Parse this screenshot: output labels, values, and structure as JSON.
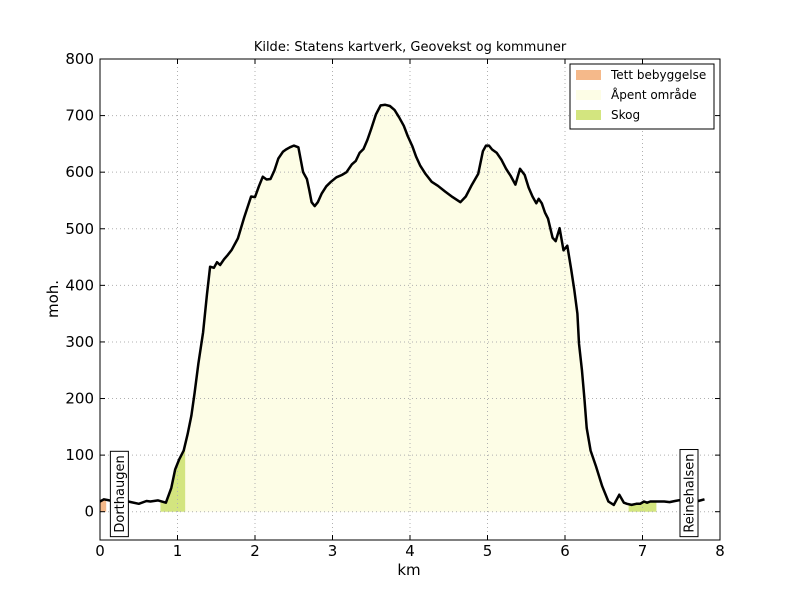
{
  "chart_data": {
    "type": "area",
    "title": "Kilde: Statens kartverk, Geovekst og kommuner",
    "xlabel": "km",
    "ylabel": "moh.",
    "xlim": [
      0,
      8
    ],
    "ylim": [
      -50,
      800
    ],
    "xticks": [
      "0",
      "1",
      "2",
      "3",
      "4",
      "5",
      "6",
      "7",
      "8"
    ],
    "yticks": [
      "800",
      "700",
      "600",
      "500",
      "400",
      "300",
      "200",
      "100",
      "0"
    ],
    "grid": true,
    "legend_position": "top-right",
    "legend": [
      {
        "label": "Tett bebyggelse",
        "color": "#f5b98a"
      },
      {
        "label": "Åpent område",
        "color": "#fdfde6"
      },
      {
        "label": "Skog",
        "color": "#d3e57f"
      }
    ],
    "land_cover": [
      {
        "class": "Tett bebyggelse",
        "x_start": 0.0,
        "x_end": 0.08
      },
      {
        "class": "Skog",
        "x_start": 0.78,
        "x_end": 1.1
      },
      {
        "class": "Åpent område",
        "x_start": 1.1,
        "x_end": 6.82
      },
      {
        "class": "Skog",
        "x_start": 6.82,
        "x_end": 7.18
      }
    ],
    "annotations": [
      {
        "text": "Dorthaugen",
        "x": 0.25
      },
      {
        "text": "Reinehalsen",
        "x": 7.6
      }
    ],
    "series": [
      {
        "x": [
          0.0,
          0.05,
          0.12,
          0.2,
          0.3,
          0.4,
          0.5,
          0.6,
          0.65,
          0.75,
          0.85,
          0.92,
          0.97,
          1.02,
          1.08,
          1.13,
          1.18,
          1.22,
          1.27,
          1.33,
          1.38,
          1.42,
          1.47,
          1.51,
          1.55,
          1.6,
          1.65,
          1.7,
          1.78,
          1.86,
          1.95,
          2.0,
          2.05,
          2.1,
          2.15,
          2.2,
          2.25,
          2.3,
          2.33,
          2.36,
          2.4,
          2.45,
          2.5,
          2.56,
          2.62,
          2.67,
          2.7,
          2.73,
          2.77,
          2.81,
          2.86,
          2.92,
          2.98,
          3.05,
          3.12,
          3.18,
          3.25,
          3.3,
          3.35,
          3.4,
          3.45,
          3.5,
          3.56,
          3.62,
          3.68,
          3.74,
          3.8,
          3.86,
          3.92,
          3.97,
          4.03,
          4.08,
          4.13,
          4.2,
          4.28,
          4.36,
          4.45,
          4.55,
          4.65,
          4.72,
          4.8,
          4.88,
          4.94,
          4.98,
          5.02,
          5.06,
          5.12,
          5.18,
          5.24,
          5.3,
          5.36,
          5.42,
          5.48,
          5.53,
          5.58,
          5.63,
          5.66,
          5.7,
          5.74,
          5.78,
          5.84,
          5.88,
          5.93,
          5.98,
          6.03,
          6.08,
          6.12,
          6.16,
          6.18,
          6.22,
          6.25,
          6.28,
          6.33,
          6.4,
          6.48,
          6.56,
          6.63,
          6.7,
          6.76,
          6.8,
          6.86,
          6.92,
          6.97,
          7.02,
          7.06,
          7.1,
          7.16,
          7.22,
          7.28,
          7.35,
          7.42,
          7.5,
          7.58,
          7.65,
          7.72,
          7.8
        ],
        "y": [
          18,
          22,
          20,
          18,
          20,
          17,
          14,
          19,
          18,
          20,
          16,
          42,
          75,
          92,
          108,
          137,
          170,
          210,
          262,
          317,
          383,
          433,
          431,
          441,
          436,
          446,
          454,
          463,
          483,
          520,
          557,
          556,
          575,
          592,
          587,
          588,
          603,
          624,
          630,
          636,
          640,
          644,
          647,
          644,
          600,
          588,
          568,
          547,
          540,
          547,
          562,
          575,
          583,
          591,
          595,
          600,
          614,
          620,
          634,
          641,
          657,
          677,
          702,
          718,
          719,
          717,
          710,
          697,
          682,
          664,
          646,
          627,
          612,
          597,
          583,
          576,
          566,
          556,
          547,
          557,
          578,
          597,
          637,
          647,
          647,
          640,
          634,
          622,
          606,
          593,
          578,
          606,
          595,
          573,
          557,
          545,
          553,
          545,
          529,
          518,
          484,
          478,
          501,
          462,
          470,
          428,
          392,
          350,
          297,
          249,
          200,
          148,
          108,
          80,
          45,
          18,
          12,
          30,
          16,
          14,
          12,
          14,
          14,
          18,
          16,
          18,
          18,
          18,
          18,
          17,
          19,
          21,
          19,
          18,
          19,
          22
        ]
      }
    ]
  }
}
